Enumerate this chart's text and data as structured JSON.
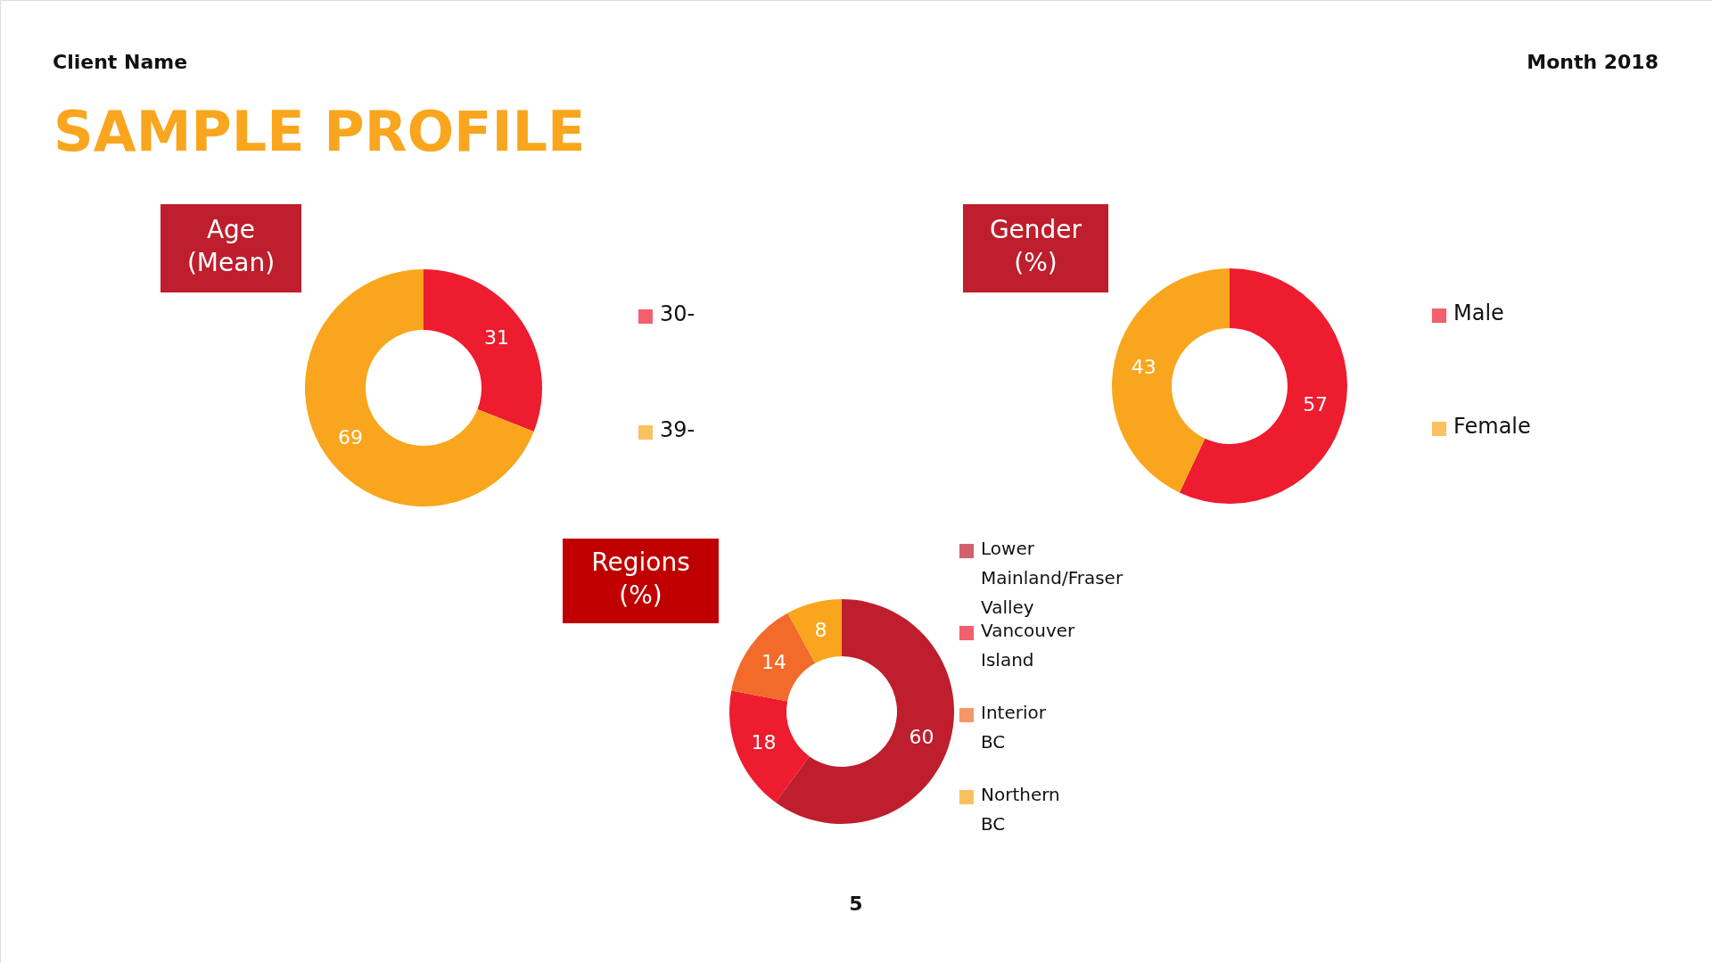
{
  "chart_data": [
    {
      "type": "donut",
      "title": "Age (Mean)",
      "categories": [
        "30-",
        "39-"
      ],
      "values": [
        31,
        69
      ],
      "colors": [
        "#ed1c2e",
        "#f9a61e"
      ],
      "data_labels": true,
      "legend": "right",
      "annotations": [
        "Client Name",
        "Month 2018",
        "SAMPLE PROFILE",
        "5"
      ]
    },
    {
      "type": "donut",
      "title": "Gender (%)",
      "categories": [
        "Male",
        "Female"
      ],
      "values": [
        57,
        43
      ],
      "colors": [
        "#ed1c2e",
        "#f9a61e"
      ],
      "data_labels": true,
      "legend": "right"
    },
    {
      "type": "donut",
      "title": "Regions (%)",
      "categories": [
        "Lower Mainland/Fraser Valley",
        "Vancouver Island",
        "Interior BC",
        "Northern BC"
      ],
      "values": [
        60,
        18,
        14,
        8
      ],
      "colors": [
        "#be1e2d",
        "#ed1c2e",
        "#f26b2b",
        "#f9a61e"
      ],
      "data_labels": true,
      "legend": "right"
    }
  ]
}
